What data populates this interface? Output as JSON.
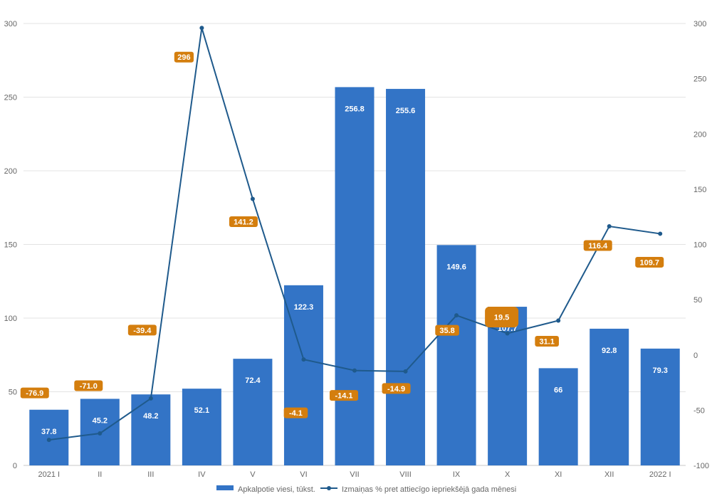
{
  "chart_data": {
    "type": "bar",
    "categories": [
      "2021 I",
      "II",
      "III",
      "IV",
      "V",
      "VI",
      "VII",
      "VIII",
      "IX",
      "X",
      "XI",
      "XII",
      "2022 I"
    ],
    "series": [
      {
        "name": "Apkalpotie viesi, tūkst.",
        "type": "bar",
        "axis": "left",
        "color": "#3374C6",
        "values": [
          37.8,
          45.2,
          48.2,
          52.1,
          72.4,
          122.3,
          256.8,
          255.6,
          149.6,
          107.7,
          66,
          92.8,
          79.3
        ],
        "labels": [
          "37.8",
          "45.2",
          "48.2",
          "52.1",
          "72.4",
          "122.3",
          "256.8",
          "255.6",
          "149.6",
          "107.7",
          "66",
          "92.8",
          "79.3"
        ]
      },
      {
        "name": "Izmaiņas % pret attiecīgo iepriekšējā gada mēnesi",
        "type": "line",
        "axis": "right",
        "color": "#1F5A8C",
        "label_color": "#D47E0E",
        "values": [
          -76.9,
          -71.0,
          -39.4,
          296,
          141.2,
          -4.1,
          -14.1,
          -14.9,
          35.8,
          19.5,
          31.1,
          116.4,
          109.7
        ],
        "labels": [
          "-76.9",
          "-71.0",
          "-39.4",
          "296",
          "141.2",
          "-4.1",
          "-14.1",
          "-14.9",
          "35.8",
          "19.5",
          "31.1",
          "116.4",
          "109.7"
        ]
      }
    ],
    "left_axis": {
      "min": 0,
      "max": 300,
      "ticks": [
        "0",
        "50",
        "100",
        "150",
        "200",
        "250",
        "300"
      ]
    },
    "right_axis": {
      "min": -100,
      "max": 300,
      "ticks": [
        "-100",
        "-50",
        "0",
        "50",
        "100",
        "150",
        "200",
        "250",
        "300"
      ]
    },
    "grid": true,
    "legend": "bottom"
  }
}
